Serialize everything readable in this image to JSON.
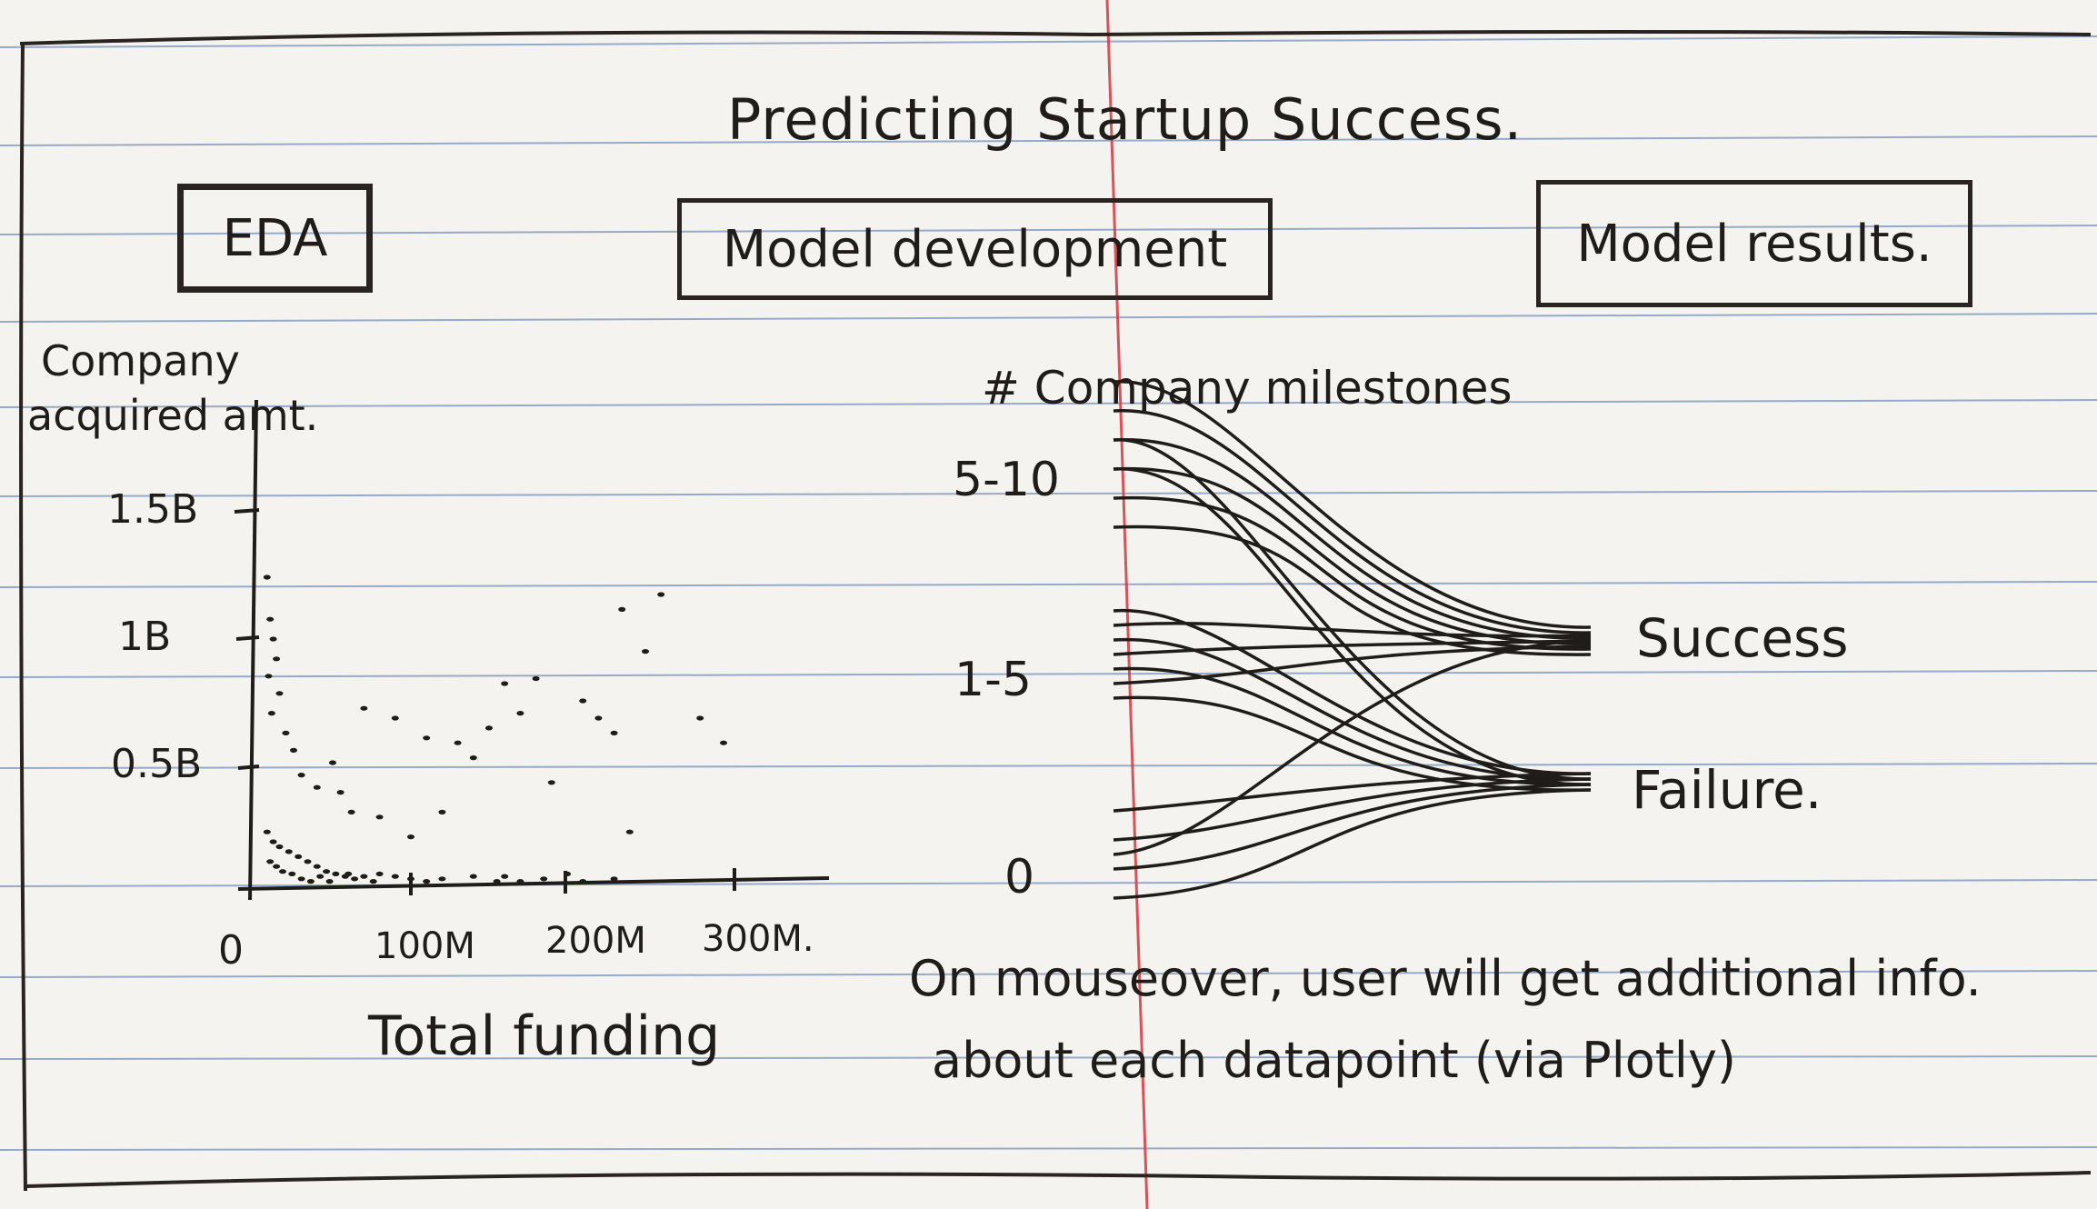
{
  "title": "Predicting Startup Success.",
  "tabs": [
    {
      "label": "EDA"
    },
    {
      "label": "Model development"
    },
    {
      "label": "Model results."
    }
  ],
  "eda_chart": {
    "ylabel_line1": "Company",
    "ylabel_line2": "acquired amt.",
    "yticks": [
      "1.5B",
      "1B",
      "0.5B"
    ],
    "xticks": [
      "0",
      "100M",
      "200M",
      "300M."
    ],
    "xlabel": "Total funding"
  },
  "milestones_chart": {
    "ylabel": "# Company milestones",
    "yticks": [
      "5-10",
      "1-5",
      "0"
    ],
    "outcomes": [
      "Success",
      "Failure."
    ]
  },
  "note_line1": "On mouseover, user will get additional info.",
  "note_line2": "about each datapoint (via Plotly)",
  "chart_data": [
    {
      "type": "scatter",
      "xlabel": "Total funding",
      "ylabel": "Company acquired amt.",
      "x_ticks": [
        "0",
        "100M",
        "200M",
        "300M."
      ],
      "y_ticks": [
        "0.5B",
        "1B",
        "1.5B"
      ],
      "x_units": "millions",
      "y_units": "billions",
      "xlim": [
        0,
        330
      ],
      "ylim": [
        0,
        1.6
      ],
      "points": [
        [
          8,
          1.25
        ],
        [
          10,
          1.08
        ],
        [
          12,
          1.0
        ],
        [
          14,
          0.92
        ],
        [
          9,
          0.85
        ],
        [
          16,
          0.78
        ],
        [
          11,
          0.7
        ],
        [
          20,
          0.62
        ],
        [
          25,
          0.55
        ],
        [
          30,
          0.45
        ],
        [
          40,
          0.4
        ],
        [
          55,
          0.38
        ],
        [
          62,
          0.3
        ],
        [
          8,
          0.22
        ],
        [
          12,
          0.18
        ],
        [
          16,
          0.16
        ],
        [
          22,
          0.14
        ],
        [
          28,
          0.12
        ],
        [
          34,
          0.1
        ],
        [
          40,
          0.08
        ],
        [
          46,
          0.06
        ],
        [
          52,
          0.05
        ],
        [
          58,
          0.04
        ],
        [
          64,
          0.03
        ],
        [
          70,
          0.04
        ],
        [
          76,
          0.02
        ],
        [
          10,
          0.1
        ],
        [
          14,
          0.08
        ],
        [
          18,
          0.06
        ],
        [
          24,
          0.05
        ],
        [
          30,
          0.03
        ],
        [
          36,
          0.02
        ],
        [
          42,
          0.04
        ],
        [
          48,
          0.02
        ],
        [
          60,
          0.05
        ],
        [
          80,
          0.05
        ],
        [
          90,
          0.04
        ],
        [
          100,
          0.03
        ],
        [
          110,
          0.02
        ],
        [
          120,
          0.03
        ],
        [
          140,
          0.04
        ],
        [
          155,
          0.02
        ],
        [
          160,
          0.04
        ],
        [
          170,
          0.02
        ],
        [
          185,
          0.03
        ],
        [
          200,
          0.05
        ],
        [
          210,
          0.02
        ],
        [
          230,
          0.03
        ],
        [
          50,
          0.5
        ],
        [
          70,
          0.72
        ],
        [
          90,
          0.68
        ],
        [
          110,
          0.6
        ],
        [
          130,
          0.58
        ],
        [
          150,
          0.64
        ],
        [
          170,
          0.7
        ],
        [
          140,
          0.52
        ],
        [
          160,
          0.82
        ],
        [
          180,
          0.84
        ],
        [
          210,
          0.75
        ],
        [
          220,
          0.68
        ],
        [
          230,
          0.62
        ],
        [
          235,
          1.12
        ],
        [
          250,
          0.95
        ],
        [
          260,
          1.18
        ],
        [
          285,
          0.68
        ],
        [
          300,
          0.58
        ],
        [
          190,
          0.42
        ],
        [
          240,
          0.22
        ],
        [
          120,
          0.3
        ],
        [
          100,
          0.2
        ],
        [
          80,
          0.28
        ]
      ]
    },
    {
      "type": "line",
      "ylabel": "# Company milestones",
      "y_categories": [
        "0",
        "1-5",
        "5-10"
      ],
      "outcomes": [
        "Success",
        "Failure."
      ],
      "series": [
        {
          "from": "5-10",
          "to": "Success",
          "count": 6
        },
        {
          "from": "5-10",
          "to": "Failure.",
          "count": 2
        },
        {
          "from": "1-5",
          "to": "Success",
          "count": 3
        },
        {
          "from": "1-5",
          "to": "Failure.",
          "count": 4
        },
        {
          "from": "0",
          "to": "Success",
          "count": 1
        },
        {
          "from": "0",
          "to": "Failure.",
          "count": 4
        }
      ]
    }
  ]
}
